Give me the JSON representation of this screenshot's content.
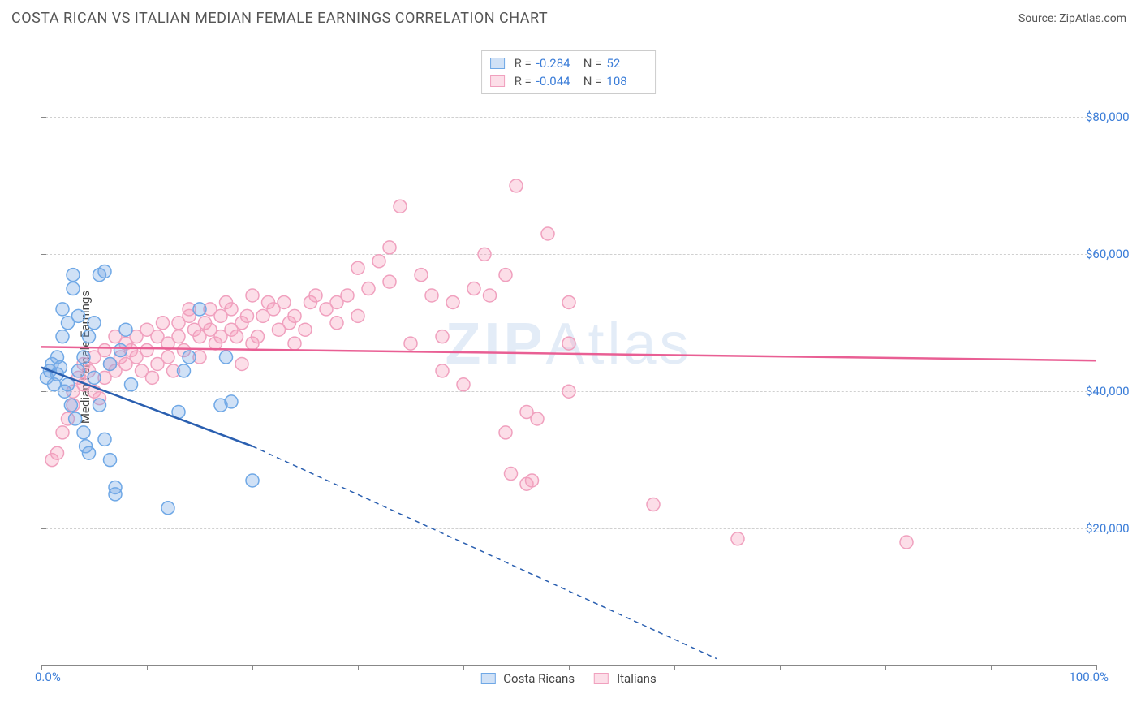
{
  "title": "COSTA RICAN VS ITALIAN MEDIAN FEMALE EARNINGS CORRELATION CHART",
  "source": "Source: ZipAtlas.com",
  "watermark": {
    "bold": "ZIP",
    "rest": "Atlas"
  },
  "chart": {
    "type": "scatter",
    "xlim": [
      0,
      100
    ],
    "ylim": [
      0,
      90000
    ],
    "xaxis_label": "",
    "yaxis_label": "Median Female Earnings",
    "xticks_pct": [
      0,
      10,
      20,
      30,
      40,
      50,
      60,
      70,
      80,
      90,
      100
    ],
    "xtick_labels": {
      "0": "0.0%",
      "100": "100.0%"
    },
    "yticks": [
      20000,
      40000,
      60000,
      80000
    ],
    "ytick_labels": [
      "$20,000",
      "$40,000",
      "$60,000",
      "$80,000"
    ],
    "gridline_color": "#d0d0d0",
    "axis_color": "#888888",
    "tick_label_color": "#3b7dd8",
    "background_color": "#ffffff",
    "marker_radius": 8,
    "marker_stroke_width": 1.5,
    "line_width_solid": 2.5,
    "line_width_dash": 1.5,
    "dash_pattern": "6,5"
  },
  "series": {
    "costa_ricans": {
      "label": "Costa Ricans",
      "fill": "rgba(120,170,230,0.35)",
      "stroke": "#6fa8e6",
      "line_color": "#2a5fb0",
      "R": "-0.284",
      "N": "52",
      "trend": {
        "x1": 0,
        "y1": 43500,
        "x_solid_end": 20,
        "y_solid_end": 32000,
        "x2": 64,
        "y2": 1000
      },
      "points": [
        [
          0.5,
          42000
        ],
        [
          0.8,
          43000
        ],
        [
          1,
          44000
        ],
        [
          1.2,
          41000
        ],
        [
          1.5,
          45000
        ],
        [
          1.5,
          42500
        ],
        [
          1.8,
          43500
        ],
        [
          2,
          48000
        ],
        [
          2,
          52000
        ],
        [
          2.2,
          40000
        ],
        [
          2.5,
          41000
        ],
        [
          2.5,
          50000
        ],
        [
          2.8,
          38000
        ],
        [
          3,
          55000
        ],
        [
          3,
          57000
        ],
        [
          3.2,
          36000
        ],
        [
          3.5,
          43000
        ],
        [
          3.5,
          51000
        ],
        [
          4,
          45000
        ],
        [
          4,
          34000
        ],
        [
          4.2,
          32000
        ],
        [
          4.5,
          48000
        ],
        [
          4.5,
          31000
        ],
        [
          5,
          42000
        ],
        [
          5,
          50000
        ],
        [
          5.5,
          57000
        ],
        [
          5.5,
          38000
        ],
        [
          6,
          57500
        ],
        [
          6,
          33000
        ],
        [
          6.5,
          44000
        ],
        [
          6.5,
          30000
        ],
        [
          7,
          26000
        ],
        [
          7,
          25000
        ],
        [
          7.5,
          46000
        ],
        [
          8,
          49000
        ],
        [
          8.5,
          41000
        ],
        [
          12,
          23000
        ],
        [
          13,
          37000
        ],
        [
          13.5,
          43000
        ],
        [
          14,
          45000
        ],
        [
          15,
          52000
        ],
        [
          17,
          38000
        ],
        [
          17.5,
          45000
        ],
        [
          18,
          38500
        ],
        [
          20,
          27000
        ]
      ]
    },
    "italians": {
      "label": "Italians",
      "fill": "rgba(245,160,190,0.35)",
      "stroke": "#f0a0be",
      "line_color": "#e95f94",
      "R": "-0.044",
      "N": "108",
      "trend": {
        "x1": 0,
        "y1": 46500,
        "x2": 100,
        "y2": 44500
      },
      "points": [
        [
          1,
          30000
        ],
        [
          1.5,
          31000
        ],
        [
          2,
          34000
        ],
        [
          2.5,
          36000
        ],
        [
          3,
          38000
        ],
        [
          3,
          40000
        ],
        [
          3.5,
          42000
        ],
        [
          4,
          41000
        ],
        [
          4,
          44000
        ],
        [
          4.5,
          43000
        ],
        [
          5,
          45000
        ],
        [
          5,
          40000
        ],
        [
          5.5,
          39000
        ],
        [
          6,
          42000
        ],
        [
          6,
          46000
        ],
        [
          6.5,
          44000
        ],
        [
          7,
          43000
        ],
        [
          7,
          48000
        ],
        [
          7.5,
          45000
        ],
        [
          8,
          44000
        ],
        [
          8,
          47000
        ],
        [
          8.5,
          46000
        ],
        [
          9,
          45000
        ],
        [
          9,
          48000
        ],
        [
          9.5,
          43000
        ],
        [
          10,
          49000
        ],
        [
          10,
          46000
        ],
        [
          10.5,
          42000
        ],
        [
          11,
          48000
        ],
        [
          11,
          44000
        ],
        [
          11.5,
          50000
        ],
        [
          12,
          47000
        ],
        [
          12,
          45000
        ],
        [
          12.5,
          43000
        ],
        [
          13,
          48000
        ],
        [
          13,
          50000
        ],
        [
          13.5,
          46000
        ],
        [
          14,
          51000
        ],
        [
          14,
          52000
        ],
        [
          14.5,
          49000
        ],
        [
          15,
          48000
        ],
        [
          15,
          45000
        ],
        [
          15.5,
          50000
        ],
        [
          16,
          52000
        ],
        [
          16,
          49000
        ],
        [
          16.5,
          47000
        ],
        [
          17,
          48000
        ],
        [
          17,
          51000
        ],
        [
          17.5,
          53000
        ],
        [
          18,
          49000
        ],
        [
          18,
          52000
        ],
        [
          18.5,
          48000
        ],
        [
          19,
          50000
        ],
        [
          19,
          44000
        ],
        [
          19.5,
          51000
        ],
        [
          20,
          54000
        ],
        [
          20,
          47000
        ],
        [
          20.5,
          48000
        ],
        [
          21,
          51000
        ],
        [
          21.5,
          53000
        ],
        [
          22,
          52000
        ],
        [
          22.5,
          49000
        ],
        [
          23,
          53000
        ],
        [
          23.5,
          50000
        ],
        [
          24,
          51000
        ],
        [
          24,
          47000
        ],
        [
          25,
          49000
        ],
        [
          25.5,
          53000
        ],
        [
          26,
          54000
        ],
        [
          27,
          52000
        ],
        [
          28,
          50000
        ],
        [
          28,
          53000
        ],
        [
          29,
          54000
        ],
        [
          30,
          51000
        ],
        [
          30,
          58000
        ],
        [
          31,
          55000
        ],
        [
          32,
          59000
        ],
        [
          33,
          56000
        ],
        [
          33,
          61000
        ],
        [
          34,
          67000
        ],
        [
          35,
          47000
        ],
        [
          36,
          57000
        ],
        [
          37,
          54000
        ],
        [
          38,
          48000
        ],
        [
          38,
          43000
        ],
        [
          39,
          53000
        ],
        [
          40,
          41000
        ],
        [
          41,
          55000
        ],
        [
          42,
          60000
        ],
        [
          42.5,
          54000
        ],
        [
          44,
          57000
        ],
        [
          44,
          34000
        ],
        [
          44.5,
          28000
        ],
        [
          45,
          70000
        ],
        [
          46,
          37000
        ],
        [
          46,
          26500
        ],
        [
          46.5,
          27000
        ],
        [
          47,
          36000
        ],
        [
          48,
          63000
        ],
        [
          50,
          40000
        ],
        [
          50,
          47000
        ],
        [
          50,
          53000
        ],
        [
          58,
          23500
        ],
        [
          66,
          18500
        ],
        [
          82,
          18000
        ]
      ]
    }
  },
  "legend": {
    "items": [
      {
        "key": "costa_ricans",
        "label": "Costa Ricans"
      },
      {
        "key": "italians",
        "label": "Italians"
      }
    ]
  },
  "stats_box": {
    "R_label": "R =",
    "N_label": "N ="
  }
}
